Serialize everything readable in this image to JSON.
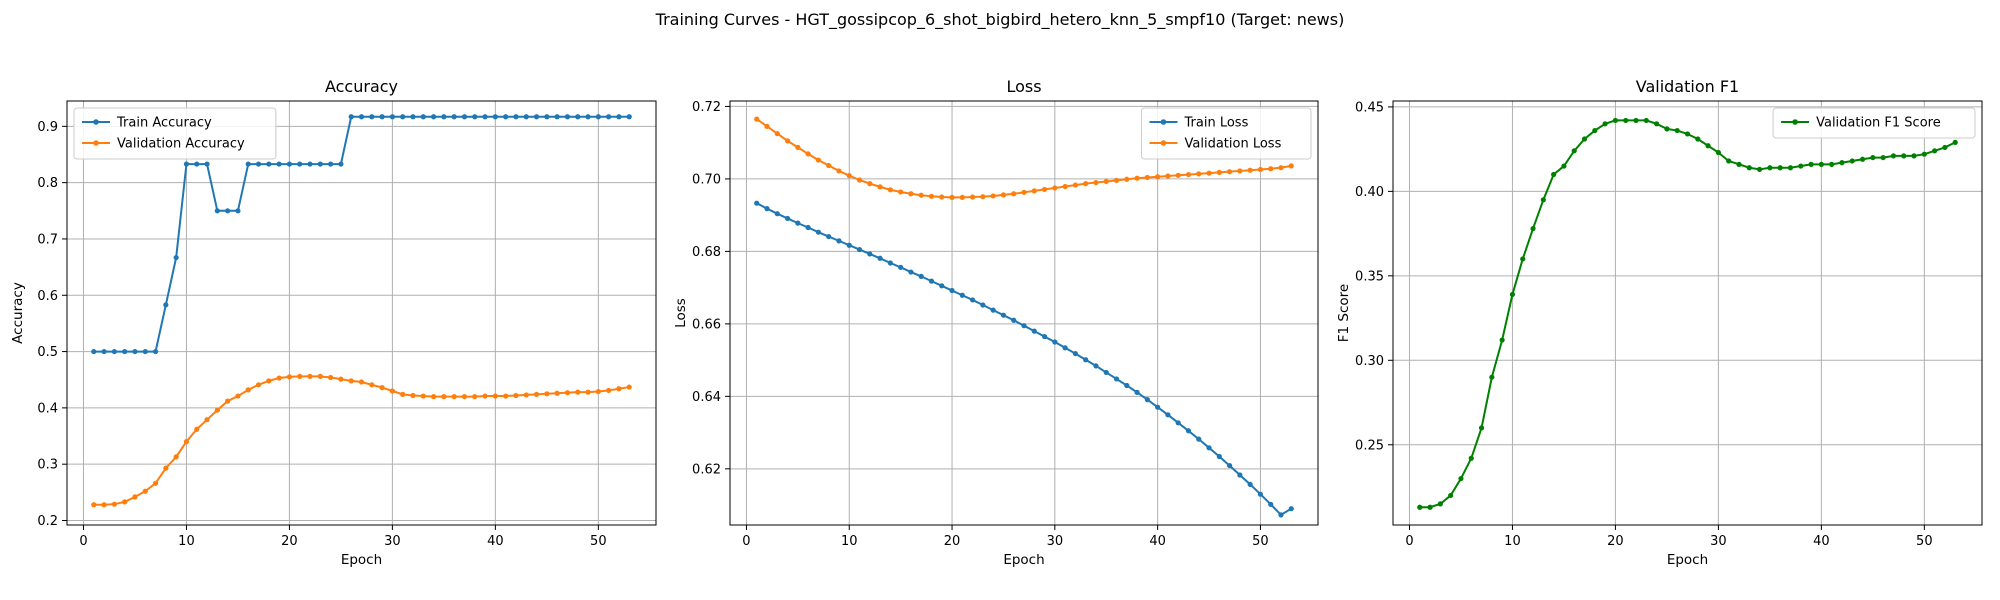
{
  "figure": {
    "title": "Training Curves - HGT_gossipcop_6_shot_bigbird_hetero_knn_5_smpf10 (Target: news)"
  },
  "colors": {
    "train": "#1f77b4",
    "validation": "#ff7f0e",
    "f1": "#008000",
    "grid": "#b0b0b0",
    "axis": "#000000"
  },
  "chart_data": [
    {
      "type": "line",
      "title": "Accuracy",
      "xlabel": "Epoch",
      "ylabel": "Accuracy",
      "xlim": [
        -1.6,
        55.6
      ],
      "ylim": [
        0.192,
        0.945
      ],
      "xticks": [
        0,
        10,
        20,
        30,
        40,
        50
      ],
      "yticks": [
        0.2,
        0.3,
        0.4,
        0.5,
        0.6,
        0.7,
        0.8,
        0.9
      ],
      "grid": true,
      "legend": "upper-left",
      "x": [
        1,
        2,
        3,
        4,
        5,
        6,
        7,
        8,
        9,
        10,
        11,
        12,
        13,
        14,
        15,
        16,
        17,
        18,
        19,
        20,
        21,
        22,
        23,
        24,
        25,
        26,
        27,
        28,
        29,
        30,
        31,
        32,
        33,
        34,
        35,
        36,
        37,
        38,
        39,
        40,
        41,
        42,
        43,
        44,
        45,
        46,
        47,
        48,
        49,
        50,
        51,
        52,
        53
      ],
      "series": [
        {
          "name": "Train Accuracy",
          "color": "#1f77b4",
          "values": [
            0.5,
            0.5,
            0.5,
            0.5,
            0.5,
            0.5,
            0.5,
            0.583,
            0.667,
            0.833,
            0.833,
            0.833,
            0.75,
            0.75,
            0.75,
            0.833,
            0.833,
            0.833,
            0.833,
            0.833,
            0.833,
            0.833,
            0.833,
            0.833,
            0.833,
            0.917,
            0.917,
            0.917,
            0.917,
            0.917,
            0.917,
            0.917,
            0.917,
            0.917,
            0.917,
            0.917,
            0.917,
            0.917,
            0.917,
            0.917,
            0.917,
            0.917,
            0.917,
            0.917,
            0.917,
            0.917,
            0.917,
            0.917,
            0.917,
            0.917,
            0.917,
            0.917,
            0.917
          ]
        },
        {
          "name": "Validation Accuracy",
          "color": "#ff7f0e",
          "values": [
            0.228,
            0.228,
            0.229,
            0.233,
            0.242,
            0.252,
            0.266,
            0.293,
            0.313,
            0.34,
            0.362,
            0.379,
            0.396,
            0.412,
            0.421,
            0.432,
            0.441,
            0.448,
            0.453,
            0.455,
            0.456,
            0.456,
            0.456,
            0.454,
            0.451,
            0.448,
            0.446,
            0.441,
            0.436,
            0.43,
            0.424,
            0.422,
            0.421,
            0.42,
            0.42,
            0.42,
            0.42,
            0.42,
            0.421,
            0.421,
            0.421,
            0.422,
            0.423,
            0.424,
            0.425,
            0.426,
            0.427,
            0.428,
            0.428,
            0.429,
            0.431,
            0.434,
            0.437
          ]
        }
      ]
    },
    {
      "type": "line",
      "title": "Loss",
      "xlabel": "Epoch",
      "ylabel": "Loss",
      "xlim": [
        -1.6,
        55.6
      ],
      "ylim": [
        0.6045,
        0.7215
      ],
      "xticks": [
        0,
        10,
        20,
        30,
        40,
        50
      ],
      "yticks": [
        0.62,
        0.64,
        0.66,
        0.68,
        0.7,
        0.72
      ],
      "grid": true,
      "legend": "upper-right",
      "x": [
        1,
        2,
        3,
        4,
        5,
        6,
        7,
        8,
        9,
        10,
        11,
        12,
        13,
        14,
        15,
        16,
        17,
        18,
        19,
        20,
        21,
        22,
        23,
        24,
        25,
        26,
        27,
        28,
        29,
        30,
        31,
        32,
        33,
        34,
        35,
        36,
        37,
        38,
        39,
        40,
        41,
        42,
        43,
        44,
        45,
        46,
        47,
        48,
        49,
        50,
        51,
        52,
        53
      ],
      "series": [
        {
          "name": "Train Loss",
          "color": "#1f77b4",
          "values": [
            0.6933,
            0.6918,
            0.6904,
            0.6891,
            0.6878,
            0.6866,
            0.6853,
            0.6841,
            0.6829,
            0.6817,
            0.6805,
            0.6793,
            0.6781,
            0.6768,
            0.6756,
            0.6743,
            0.6731,
            0.6718,
            0.6705,
            0.6692,
            0.6679,
            0.6666,
            0.6652,
            0.6638,
            0.6624,
            0.661,
            0.6595,
            0.658,
            0.6565,
            0.655,
            0.6534,
            0.6518,
            0.6501,
            0.6484,
            0.6466,
            0.6448,
            0.643,
            0.6411,
            0.6391,
            0.637,
            0.6349,
            0.6327,
            0.6305,
            0.6282,
            0.6258,
            0.6234,
            0.6209,
            0.6183,
            0.6157,
            0.613,
            0.6102,
            0.6073,
            0.609
          ]
        },
        {
          "name": "Validation Loss",
          "color": "#ff7f0e",
          "values": [
            0.7165,
            0.7145,
            0.7125,
            0.7105,
            0.7087,
            0.7069,
            0.7052,
            0.7037,
            0.7022,
            0.7009,
            0.6997,
            0.6987,
            0.6978,
            0.697,
            0.6964,
            0.6959,
            0.6955,
            0.6952,
            0.695,
            0.6949,
            0.6949,
            0.695,
            0.6951,
            0.6953,
            0.6956,
            0.6959,
            0.6963,
            0.6967,
            0.6971,
            0.6975,
            0.6979,
            0.6983,
            0.6987,
            0.699,
            0.6993,
            0.6996,
            0.6999,
            0.7002,
            0.7004,
            0.7006,
            0.7008,
            0.701,
            0.7012,
            0.7014,
            0.7016,
            0.7018,
            0.702,
            0.7022,
            0.7024,
            0.7026,
            0.7028,
            0.7031,
            0.7036
          ]
        }
      ]
    },
    {
      "type": "line",
      "title": "Validation F1",
      "xlabel": "Epoch",
      "ylabel": "F1 Score",
      "xlim": [
        -1.6,
        55.6
      ],
      "ylim": [
        0.2025,
        0.4535
      ],
      "xticks": [
        0,
        10,
        20,
        30,
        40,
        50
      ],
      "yticks": [
        0.25,
        0.3,
        0.35,
        0.4,
        0.45
      ],
      "grid": true,
      "legend": "upper-right",
      "x": [
        1,
        2,
        3,
        4,
        5,
        6,
        7,
        8,
        9,
        10,
        11,
        12,
        13,
        14,
        15,
        16,
        17,
        18,
        19,
        20,
        21,
        22,
        23,
        24,
        25,
        26,
        27,
        28,
        29,
        30,
        31,
        32,
        33,
        34,
        35,
        36,
        37,
        38,
        39,
        40,
        41,
        42,
        43,
        44,
        45,
        46,
        47,
        48,
        49,
        50,
        51,
        52,
        53
      ],
      "series": [
        {
          "name": "Validation F1 Score",
          "color": "#008000",
          "values": [
            0.213,
            0.213,
            0.215,
            0.22,
            0.23,
            0.242,
            0.26,
            0.29,
            0.312,
            0.339,
            0.36,
            0.378,
            0.395,
            0.41,
            0.415,
            0.424,
            0.431,
            0.436,
            0.44,
            0.442,
            0.442,
            0.442,
            0.442,
            0.44,
            0.437,
            0.436,
            0.434,
            0.431,
            0.427,
            0.423,
            0.418,
            0.416,
            0.414,
            0.413,
            0.414,
            0.414,
            0.414,
            0.415,
            0.416,
            0.416,
            0.416,
            0.417,
            0.418,
            0.419,
            0.42,
            0.42,
            0.421,
            0.421,
            0.421,
            0.422,
            0.424,
            0.426,
            0.429
          ]
        }
      ]
    }
  ]
}
